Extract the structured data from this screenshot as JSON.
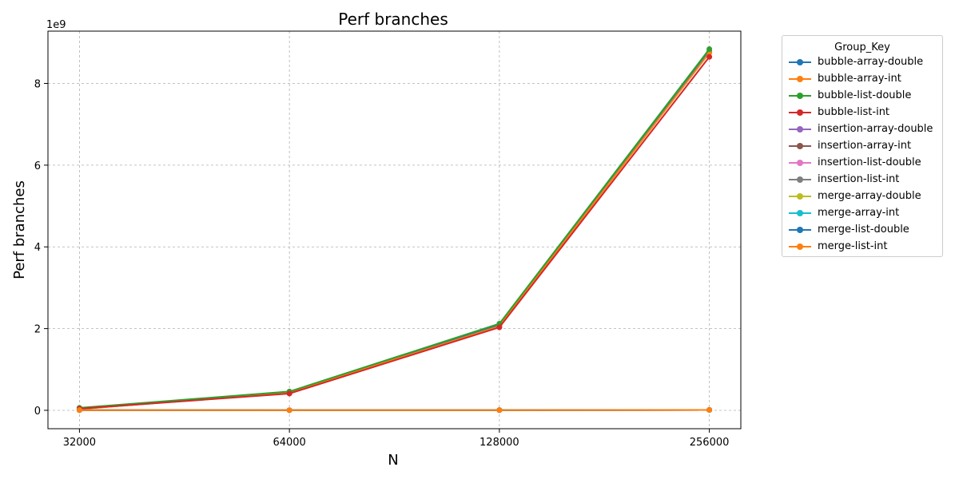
{
  "chart_data": {
    "type": "line",
    "title": "Perf branches",
    "xlabel": "N",
    "ylabel": "Perf branches",
    "y_scale_label": "1e9",
    "x_scale": "log2",
    "x": [
      32000,
      64000,
      128000,
      256000
    ],
    "x_tick_labels": [
      "32000",
      "64000",
      "128000",
      "256000"
    ],
    "y_ticks": [
      0,
      2,
      4,
      6,
      8
    ],
    "y_tick_labels": [
      "0",
      "2",
      "4",
      "6",
      "8"
    ],
    "ylim": [
      -0.45,
      9.28
    ],
    "grid": true,
    "legend_title": "Group_Key",
    "legend_position": "outside-right",
    "series": [
      {
        "name": "bubble-array-double",
        "color": "#1f77b4",
        "values": [
          0.03,
          0.44,
          2.08,
          8.78
        ]
      },
      {
        "name": "bubble-array-int",
        "color": "#ff7f0e",
        "values": [
          0.03,
          0.43,
          2.06,
          8.75
        ]
      },
      {
        "name": "bubble-list-double",
        "color": "#2ca02c",
        "values": [
          0.06,
          0.46,
          2.12,
          8.84
        ]
      },
      {
        "name": "bubble-list-int",
        "color": "#d62728",
        "values": [
          0.04,
          0.41,
          2.03,
          8.65
        ]
      },
      {
        "name": "insertion-array-double",
        "color": "#9467bd",
        "values": [
          0.005,
          0.003,
          0.005,
          0.01
        ]
      },
      {
        "name": "insertion-array-int",
        "color": "#8c564b",
        "values": [
          0.005,
          0.003,
          0.005,
          0.01
        ]
      },
      {
        "name": "insertion-list-double",
        "color": "#e377c2",
        "values": [
          0.005,
          0.003,
          0.005,
          0.01
        ]
      },
      {
        "name": "insertion-list-int",
        "color": "#7f7f7f",
        "values": [
          0.005,
          0.003,
          0.005,
          0.01
        ]
      },
      {
        "name": "merge-array-double",
        "color": "#bcbd22",
        "values": [
          0.005,
          0.003,
          0.005,
          0.01
        ]
      },
      {
        "name": "merge-array-int",
        "color": "#17becf",
        "values": [
          0.005,
          0.003,
          0.005,
          0.01
        ]
      },
      {
        "name": "merge-list-double",
        "color": "#1f77b4",
        "values": [
          0.005,
          0.003,
          0.005,
          0.01
        ]
      },
      {
        "name": "merge-list-int",
        "color": "#ff7f0e",
        "values": [
          0.005,
          0.003,
          0.005,
          0.01
        ]
      }
    ]
  }
}
